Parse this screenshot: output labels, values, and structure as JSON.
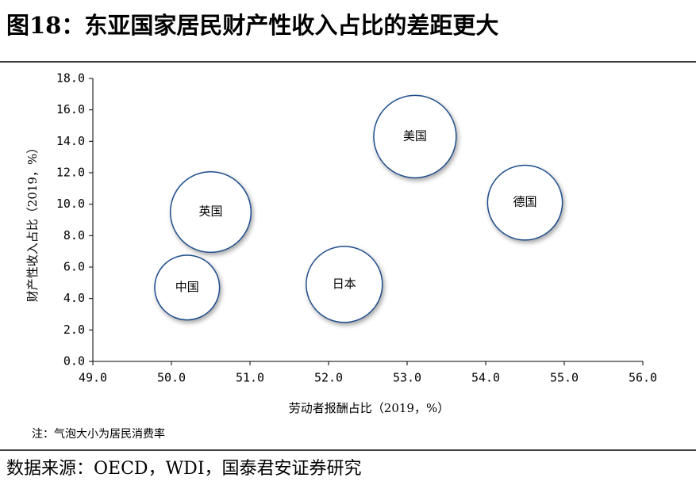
{
  "chart_data": {
    "type": "bubble",
    "title": "图18：东亚国家居民财产性收入占比的差距更大",
    "x_label": "劳动者报酬占比（2019，%）",
    "y_label": "财产性收入占比（2019，%）",
    "note": "注：气泡大小为居民消费率",
    "source": "数据来源：OECD，WDI，国泰君安证券研究",
    "color": "#1f4e8c",
    "labels": [
      "美国",
      "德国",
      "英国",
      "中国",
      "日本"
    ],
    "x": [
      53.1,
      54.5,
      50.5,
      50.2,
      52.2
    ],
    "values": [
      14.3,
      10.1,
      9.5,
      4.7,
      4.9
    ],
    "sizes": [
      68,
      56,
      65,
      42,
      58
    ],
    "xlim": [
      49,
      56
    ],
    "xticks": [
      {
        "value": 49,
        "label": "49.0"
      },
      {
        "value": 50,
        "label": "50.0"
      },
      {
        "value": 51,
        "label": "51.0"
      },
      {
        "value": 52,
        "label": "52.0"
      },
      {
        "value": 53,
        "label": "53.0"
      },
      {
        "value": 54,
        "label": "54.0"
      },
      {
        "value": 55,
        "label": "55.0"
      },
      {
        "value": 56,
        "label": "56.0"
      }
    ],
    "ylim": [
      0,
      18
    ],
    "yticks": [
      {
        "value": 0,
        "label": "0.0"
      },
      {
        "value": 2,
        "label": "2.0"
      },
      {
        "value": 4,
        "label": "4.0"
      },
      {
        "value": 6,
        "label": "6.0"
      },
      {
        "value": 8,
        "label": "8.0"
      },
      {
        "value": 10,
        "label": "10.0"
      },
      {
        "value": 12,
        "label": "12.0"
      },
      {
        "value": 14,
        "label": "14.0"
      },
      {
        "value": 16,
        "label": "16.0"
      },
      {
        "value": 18,
        "label": "18.0"
      }
    ]
  }
}
